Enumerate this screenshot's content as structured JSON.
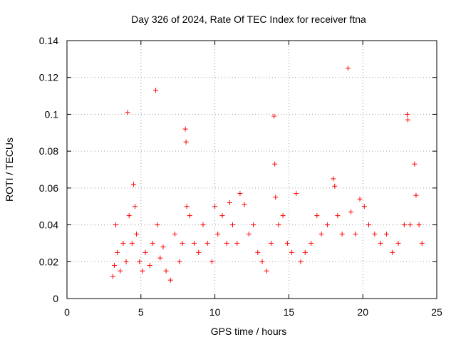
{
  "chart_data": {
    "type": "scatter",
    "title": "Day 326 of 2024, Rate Of TEC Index for receiver ftna",
    "xlabel": "GPS time / hours",
    "ylabel": "ROTI / TECUs",
    "xlim": [
      0,
      25
    ],
    "ylim": [
      0,
      0.14
    ],
    "xticks": [
      0,
      5,
      10,
      15,
      20,
      25
    ],
    "yticks": [
      0,
      0.02,
      0.04,
      0.06,
      0.08,
      0.1,
      0.12,
      0.14
    ],
    "xtick_labels": [
      "0",
      "5",
      "10",
      "15",
      "20",
      "25"
    ],
    "ytick_labels": [
      "0",
      "0.02",
      "0.04",
      "0.06",
      "0.08",
      "0.1",
      "0.12",
      "0.14"
    ],
    "grid": true,
    "legend": "none",
    "marker": "plus",
    "color": "#ff0000",
    "series": [
      {
        "points": [
          [
            3.1,
            0.012
          ],
          [
            3.2,
            0.018
          ],
          [
            3.3,
            0.04
          ],
          [
            3.4,
            0.025
          ],
          [
            3.6,
            0.015
          ],
          [
            3.8,
            0.03
          ],
          [
            4.0,
            0.02
          ],
          [
            4.1,
            0.101
          ],
          [
            4.2,
            0.045
          ],
          [
            4.4,
            0.03
          ],
          [
            4.5,
            0.062
          ],
          [
            4.6,
            0.05
          ],
          [
            4.7,
            0.035
          ],
          [
            4.9,
            0.02
          ],
          [
            5.1,
            0.015
          ],
          [
            5.3,
            0.025
          ],
          [
            5.6,
            0.018
          ],
          [
            5.8,
            0.03
          ],
          [
            6.0,
            0.113
          ],
          [
            6.1,
            0.04
          ],
          [
            6.3,
            0.022
          ],
          [
            6.5,
            0.028
          ],
          [
            6.7,
            0.015
          ],
          [
            7.0,
            0.01
          ],
          [
            7.3,
            0.035
          ],
          [
            7.6,
            0.02
          ],
          [
            7.8,
            0.03
          ],
          [
            8.0,
            0.092
          ],
          [
            8.05,
            0.085
          ],
          [
            8.1,
            0.05
          ],
          [
            8.3,
            0.045
          ],
          [
            8.6,
            0.03
          ],
          [
            8.9,
            0.025
          ],
          [
            9.2,
            0.04
          ],
          [
            9.5,
            0.03
          ],
          [
            9.8,
            0.02
          ],
          [
            10.0,
            0.05
          ],
          [
            10.2,
            0.035
          ],
          [
            10.5,
            0.045
          ],
          [
            10.8,
            0.03
          ],
          [
            11.0,
            0.052
          ],
          [
            11.2,
            0.04
          ],
          [
            11.5,
            0.03
          ],
          [
            11.7,
            0.057
          ],
          [
            12.0,
            0.051
          ],
          [
            12.3,
            0.035
          ],
          [
            12.6,
            0.04
          ],
          [
            12.9,
            0.025
          ],
          [
            13.2,
            0.02
          ],
          [
            13.5,
            0.015
          ],
          [
            13.8,
            0.03
          ],
          [
            14.0,
            0.099
          ],
          [
            14.05,
            0.073
          ],
          [
            14.1,
            0.055
          ],
          [
            14.3,
            0.04
          ],
          [
            14.6,
            0.045
          ],
          [
            14.9,
            0.03
          ],
          [
            15.2,
            0.025
          ],
          [
            15.5,
            0.057
          ],
          [
            15.8,
            0.02
          ],
          [
            16.1,
            0.025
          ],
          [
            16.5,
            0.03
          ],
          [
            16.9,
            0.045
          ],
          [
            17.2,
            0.035
          ],
          [
            17.6,
            0.04
          ],
          [
            18.0,
            0.065
          ],
          [
            18.1,
            0.061
          ],
          [
            18.3,
            0.045
          ],
          [
            18.6,
            0.035
          ],
          [
            19.0,
            0.125
          ],
          [
            19.2,
            0.047
          ],
          [
            19.5,
            0.035
          ],
          [
            19.8,
            0.054
          ],
          [
            20.1,
            0.05
          ],
          [
            20.4,
            0.04
          ],
          [
            20.8,
            0.035
          ],
          [
            21.2,
            0.03
          ],
          [
            21.6,
            0.035
          ],
          [
            22.0,
            0.025
          ],
          [
            22.4,
            0.03
          ],
          [
            22.8,
            0.04
          ],
          [
            23.0,
            0.1
          ],
          [
            23.05,
            0.097
          ],
          [
            23.2,
            0.04
          ],
          [
            23.5,
            0.073
          ],
          [
            23.6,
            0.056
          ],
          [
            23.8,
            0.04
          ],
          [
            24.0,
            0.03
          ]
        ]
      }
    ]
  }
}
